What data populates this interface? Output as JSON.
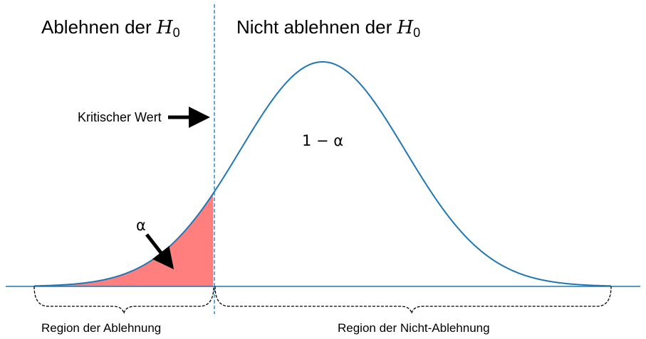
{
  "labels": {
    "reject": "Ablehnen der ",
    "not_reject": "Nicht ablehnen der ",
    "hypothesis_symbol": "H",
    "hypothesis_subscript": "0",
    "critical_value": "Kritischer Wert",
    "one_minus_alpha": "1 − α",
    "alpha": "α",
    "region_reject": "Region der Ablehnung",
    "region_not_reject": "Region der Nicht-Ablehnung"
  },
  "distribution": {
    "type": "normal",
    "mean": 0,
    "sd": 1,
    "x_min": -3.5,
    "x_max": 3.5,
    "critical_value": -1.33,
    "tail": "left"
  },
  "colors": {
    "curve": "#1f77b4",
    "axis": "#1f77b4",
    "critical_line": "#1f77b4",
    "rejection_fill": "#ff7f7f",
    "arrow": "#000000",
    "brace": "#000000"
  }
}
